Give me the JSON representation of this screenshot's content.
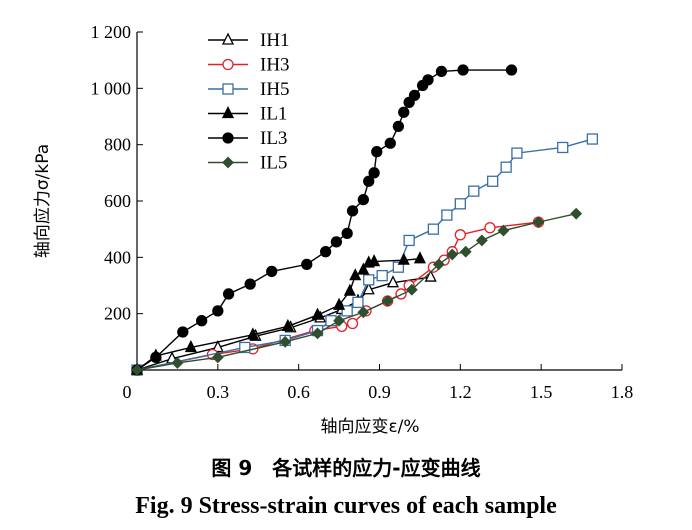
{
  "chart_data": {
    "type": "line",
    "title": "",
    "xlabel": "轴向应变ε/%",
    "ylabel": "轴向应力σ/kPa",
    "xlim": [
      0,
      1.8
    ],
    "ylim": [
      0,
      1200
    ],
    "x_ticks": [
      0,
      0.3,
      0.6,
      0.9,
      1.2,
      1.5,
      1.8
    ],
    "x_tick_labels": [
      "0",
      "0.3",
      "0.6",
      "0.9",
      "1.2",
      "1.5",
      "1.8"
    ],
    "y_ticks": [
      200,
      400,
      600,
      800,
      1000,
      1200
    ],
    "y_tick_labels": [
      "200",
      "400",
      "600",
      "800",
      "1 000",
      "1 200"
    ],
    "legend_position": "top-left",
    "series": [
      {
        "name": "IH1",
        "color": "#000000",
        "marker": "triangle-open",
        "x": [
          0,
          0.13,
          0.3,
          0.44,
          0.57,
          0.68,
          0.76,
          0.82,
          0.86,
          0.95,
          1.09
        ],
        "y": [
          0,
          40,
          80,
          120,
          150,
          185,
          215,
          245,
          285,
          310,
          330
        ]
      },
      {
        "name": "IH3",
        "color": "#e0202a",
        "marker": "circle-open",
        "x": [
          0,
          0.28,
          0.43,
          0.66,
          0.76,
          0.8,
          0.85,
          0.93,
          0.98,
          1.01,
          1.1,
          1.14,
          1.17,
          1.2,
          1.31,
          1.49
        ],
        "y": [
          0,
          55,
          75,
          140,
          155,
          165,
          210,
          245,
          270,
          300,
          365,
          390,
          420,
          480,
          505,
          525
        ]
      },
      {
        "name": "IH5",
        "color": "#3a6ea8",
        "marker": "square-open",
        "x": [
          0,
          0.4,
          0.55,
          0.67,
          0.72,
          0.78,
          0.82,
          0.86,
          0.91,
          0.97,
          1.01,
          1.1,
          1.15,
          1.2,
          1.25,
          1.32,
          1.37,
          1.41,
          1.58,
          1.69
        ],
        "y": [
          0,
          80,
          105,
          140,
          175,
          210,
          240,
          320,
          335,
          365,
          460,
          500,
          550,
          590,
          635,
          670,
          720,
          770,
          790,
          820
        ]
      },
      {
        "name": "IL1",
        "color": "#000000",
        "marker": "triangle-filled",
        "x": [
          0,
          0.07,
          0.2,
          0.43,
          0.56,
          0.67,
          0.75,
          0.79,
          0.81,
          0.84,
          0.86,
          0.88,
          0.99,
          1.05
        ],
        "y": [
          0,
          50,
          80,
          125,
          155,
          195,
          230,
          280,
          335,
          355,
          380,
          385,
          390,
          395
        ]
      },
      {
        "name": "IL3",
        "color": "#000000",
        "marker": "circle-filled",
        "x": [
          0,
          0.07,
          0.17,
          0.24,
          0.3,
          0.34,
          0.42,
          0.5,
          0.63,
          0.7,
          0.74,
          0.78,
          0.8,
          0.84,
          0.86,
          0.88,
          0.89,
          0.94,
          0.97,
          0.99,
          1.01,
          1.03,
          1.06,
          1.08,
          1.13,
          1.21,
          1.39
        ],
        "y": [
          0,
          45,
          135,
          175,
          210,
          270,
          305,
          350,
          375,
          420,
          455,
          485,
          565,
          605,
          670,
          700,
          775,
          805,
          865,
          915,
          950,
          975,
          1010,
          1030,
          1060,
          1065,
          1065
        ]
      },
      {
        "name": "IL5",
        "color": "#2f4f2f",
        "marker": "diamond-filled",
        "x": [
          0,
          0.15,
          0.3,
          0.55,
          0.67,
          0.75,
          0.84,
          0.93,
          1.02,
          1.12,
          1.17,
          1.22,
          1.28,
          1.36,
          1.49,
          1.63
        ],
        "y": [
          0,
          25,
          45,
          100,
          130,
          175,
          205,
          245,
          285,
          375,
          410,
          420,
          460,
          495,
          525,
          555
        ]
      }
    ]
  },
  "caption": {
    "cn": "图 9　各试样的应力-应变曲线",
    "en": "Fig.  9    Stress-strain curves of each sample"
  }
}
